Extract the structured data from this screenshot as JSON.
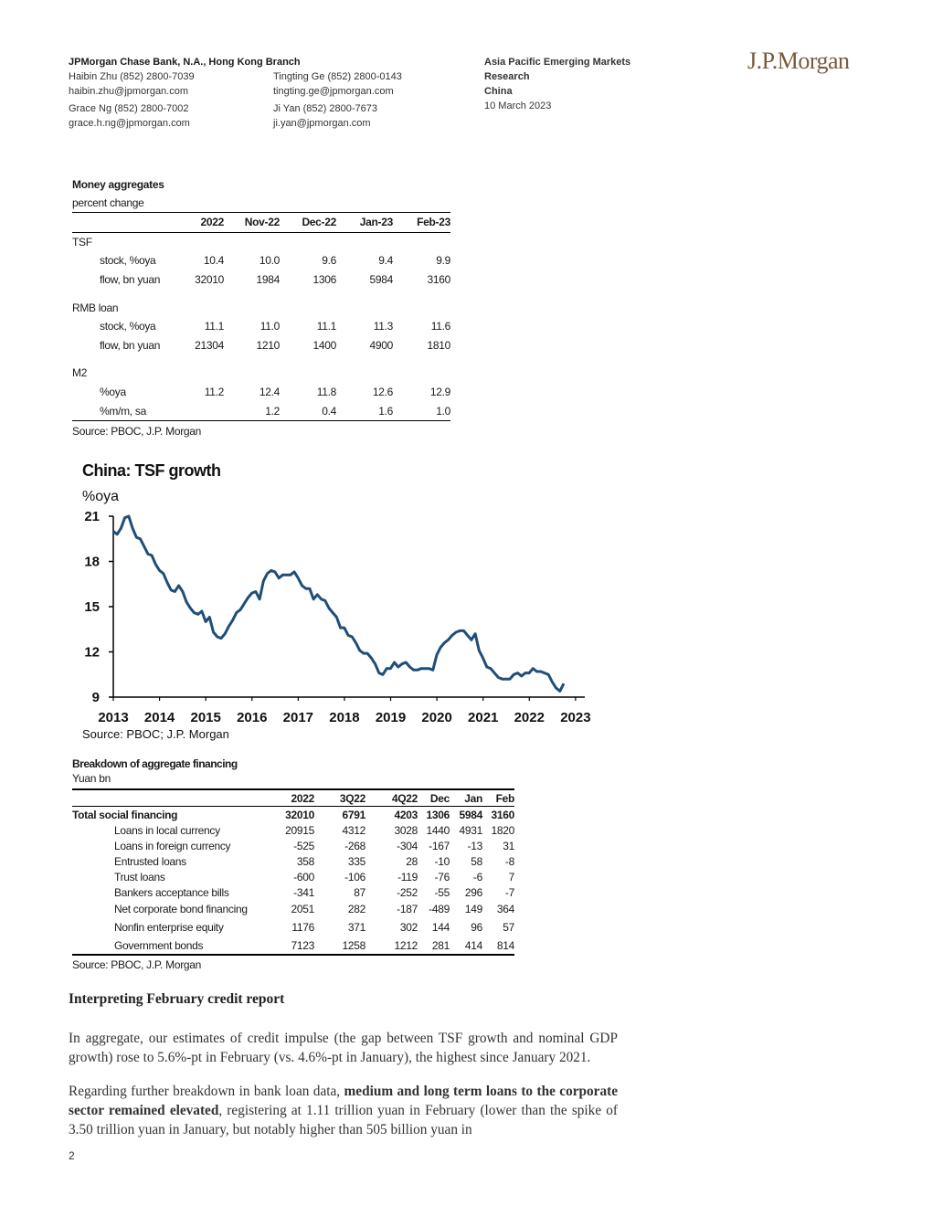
{
  "header": {
    "bank": "JPMorgan Chase Bank, N.A., Hong Kong Branch",
    "contacts_left": [
      {
        "name": "Haibin Zhu (852) 2800-7039",
        "email": "haibin.zhu@jpmorgan.com"
      },
      {
        "name": "Grace Ng (852) 2800-7002",
        "email": "grace.h.ng@jpmorgan.com"
      }
    ],
    "contacts_right": [
      {
        "name": "Tingting Ge (852) 2800-0143",
        "email": "tingting.ge@jpmorgan.com"
      },
      {
        "name": "Ji Yan (852) 2800-7673",
        "email": "ji.yan@jpmorgan.com"
      }
    ],
    "series_title_1": "Asia Pacific Emerging Markets",
    "series_title_2": "Research",
    "region": "China",
    "date": "10 March 2023",
    "logo": "J.P.Morgan"
  },
  "money_table": {
    "title": "Money aggregates",
    "subtitle": "percent change",
    "columns": [
      "2022",
      "Nov-22",
      "Dec-22",
      "Jan-23",
      "Feb-23"
    ],
    "sections": [
      {
        "name": "TSF",
        "rows": [
          {
            "label": "stock, %oya",
            "values": [
              "10.4",
              "10.0",
              "9.6",
              "9.4",
              "9.9"
            ]
          },
          {
            "label": "flow, bn yuan",
            "values": [
              "32010",
              "1984",
              "1306",
              "5984",
              "3160"
            ]
          }
        ]
      },
      {
        "name": "RMB loan",
        "rows": [
          {
            "label": "stock, %oya",
            "values": [
              "11.1",
              "11.0",
              "11.1",
              "11.3",
              "11.6"
            ]
          },
          {
            "label": "flow, bn yuan",
            "values": [
              "21304",
              "1210",
              "1400",
              "4900",
              "1810"
            ]
          }
        ]
      },
      {
        "name": "M2",
        "rows": [
          {
            "label": "%oya",
            "values": [
              "11.2",
              "12.4",
              "11.8",
              "12.6",
              "12.9"
            ]
          },
          {
            "label": "%m/m, sa",
            "values": [
              "",
              "1.2",
              "0.4",
              "1.6",
              "1.0"
            ]
          }
        ]
      }
    ],
    "source": "Source: PBOC, J.P. Morgan"
  },
  "chart_data": {
    "type": "line",
    "title": "China: TSF growth",
    "ylabel": "%oya",
    "ylim": [
      9,
      21
    ],
    "yticks": [
      "21",
      "18",
      "15",
      "12",
      "9"
    ],
    "xticks": [
      "2013",
      "2014",
      "2015",
      "2016",
      "2017",
      "2018",
      "2019",
      "2020",
      "2021",
      "2022",
      "2023"
    ],
    "line_color": "#1f4e79",
    "series": [
      {
        "x_start": 2013.0,
        "x_step": 0.0833,
        "values": [
          20.0,
          19.8,
          20.2,
          20.9,
          21.0,
          20.2,
          19.6,
          19.5,
          19.0,
          18.5,
          18.4,
          17.8,
          17.4,
          17.2,
          16.6,
          16.1,
          16.0,
          16.4,
          16.0,
          15.3,
          14.9,
          14.6,
          14.5,
          14.7,
          14.0,
          14.3,
          13.3,
          13.0,
          12.9,
          13.2,
          13.7,
          14.1,
          14.6,
          14.8,
          15.2,
          15.6,
          15.9,
          16.0,
          15.5,
          16.7,
          17.2,
          17.4,
          17.3,
          16.9,
          17.1,
          17.1,
          17.1,
          17.3,
          16.9,
          16.4,
          16.2,
          16.2,
          15.5,
          15.8,
          15.5,
          15.4,
          14.9,
          14.6,
          14.3,
          13.6,
          13.6,
          13.1,
          13.0,
          12.6,
          12.1,
          11.9,
          11.9,
          11.6,
          11.2,
          10.6,
          10.5,
          10.9,
          10.9,
          11.3,
          11.0,
          11.2,
          11.3,
          11.0,
          10.8,
          10.8,
          10.9,
          10.9,
          10.9,
          10.8,
          11.8,
          12.3,
          12.6,
          12.8,
          13.1,
          13.3,
          13.4,
          13.4,
          13.1,
          12.8,
          13.2,
          12.1,
          11.6,
          11.0,
          10.9,
          10.6,
          10.3,
          10.2,
          10.2,
          10.2,
          10.5,
          10.6,
          10.4,
          10.6,
          10.6,
          10.9,
          10.7,
          10.7,
          10.6,
          10.5,
          10.0,
          9.6,
          9.4,
          9.9
        ]
      }
    ]
  },
  "chart_source": "Source: PBOC; J.P. Morgan",
  "financing_table": {
    "title": "Breakdown of aggregate financing",
    "subtitle": "Yuan bn",
    "columns": [
      "2022",
      "3Q22",
      "4Q22",
      "Dec",
      "Jan",
      "Feb"
    ],
    "total": {
      "label": "Total social financing",
      "values": [
        "32010",
        "6791",
        "4203",
        "1306",
        "5984",
        "3160"
      ]
    },
    "rows": [
      {
        "label": "Loans in local currency",
        "values": [
          "20915",
          "4312",
          "3028",
          "1440",
          "4931",
          "1820"
        ]
      },
      {
        "label": "Loans in foreign currency",
        "values": [
          "-525",
          "-268",
          "-304",
          "-167",
          "-13",
          "31"
        ]
      },
      {
        "label": "Entrusted loans",
        "values": [
          "358",
          "335",
          "28",
          "-10",
          "58",
          "-8"
        ]
      },
      {
        "label": "Trust loans",
        "values": [
          "-600",
          "-106",
          "-119",
          "-76",
          "-6",
          "7"
        ]
      },
      {
        "label": "Bankers acceptance bills",
        "values": [
          "-341",
          "87",
          "-252",
          "-55",
          "296",
          "-7"
        ]
      },
      {
        "label": "Net corporate bond financing",
        "values": [
          "2051",
          "282",
          "-187",
          "-489",
          "149",
          "364"
        ]
      },
      {
        "label": "Nonfin enterprise equity",
        "values": [
          "1176",
          "371",
          "302",
          "144",
          "96",
          "57"
        ]
      },
      {
        "label": "Government bonds",
        "values": [
          "7123",
          "1258",
          "1212",
          "281",
          "414",
          "814"
        ]
      }
    ],
    "source": "Source: PBOC, J.P. Morgan"
  },
  "article": {
    "heading": "Interpreting February credit report",
    "para1": "In aggregate, our estimates of credit impulse (the gap between TSF growth and nominal GDP growth) rose to 5.6%-pt in February (vs. 4.6%-pt in January), the highest since January 2021.",
    "para2_a": "Regarding further breakdown in bank loan data, ",
    "para2_bold": "medium and long term loans to the corporate sector remained elevated",
    "para2_b": ", registering at 1.11 trillion yuan in February (lower than the spike of 3.50 trillion yuan in January, but notably higher than 505 billion yuan in"
  },
  "page_number": "2"
}
